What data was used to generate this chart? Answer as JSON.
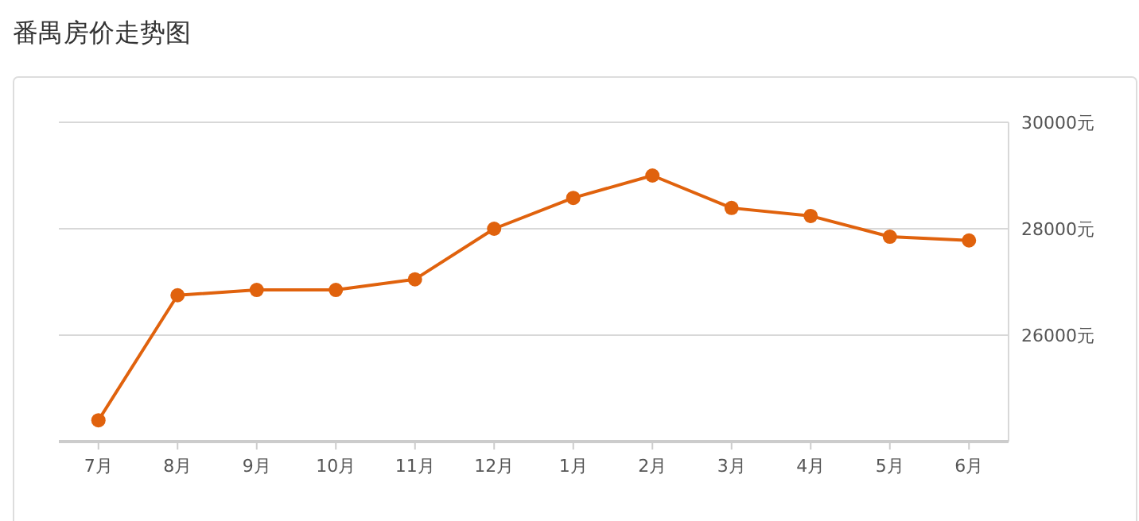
{
  "chart_data": {
    "type": "line",
    "title": "番禺房价走势图",
    "categories": [
      "7月",
      "8月",
      "9月",
      "10月",
      "11月",
      "12月",
      "1月",
      "2月",
      "3月",
      "4月",
      "5月",
      "6月"
    ],
    "series": [
      {
        "color": "#e0620d",
        "values": [
          24400,
          26750,
          26850,
          26850,
          27050,
          28000,
          28580,
          29000,
          28390,
          28240,
          27850,
          27780
        ]
      }
    ],
    "ylim": [
      24000,
      30000
    ],
    "yticks": [
      {
        "value": 26000,
        "label": "26000元"
      },
      {
        "value": 28000,
        "label": "28000元"
      },
      {
        "value": 30000,
        "label": "30000元"
      }
    ],
    "grid": "y",
    "marker": "circle",
    "line_style": "solid"
  }
}
